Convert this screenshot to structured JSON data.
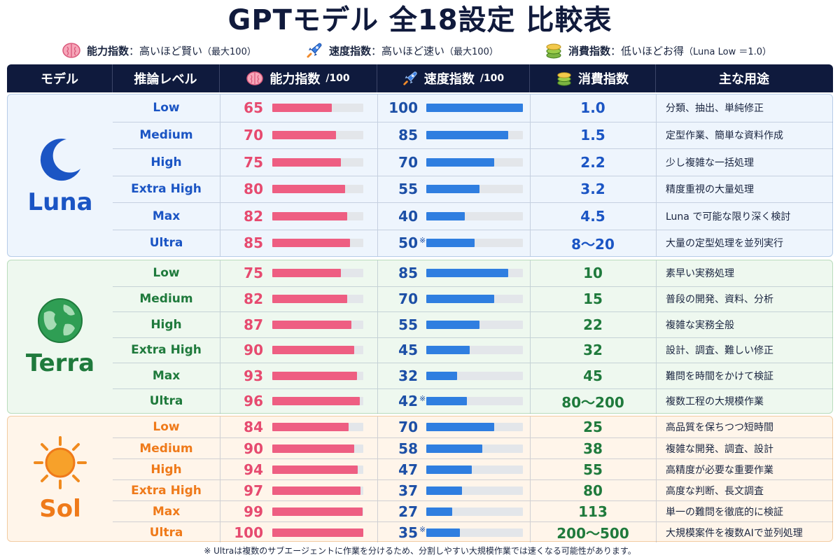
{
  "title": "GPTモデル 全18設定 比較表",
  "legend": [
    {
      "icon": "brain-icon",
      "label": "能力指数",
      "desc": "：高いほど賢い",
      "sub": "（最大100）"
    },
    {
      "icon": "rocket-icon",
      "label": "速度指数",
      "desc": "：高いほど速い",
      "sub": "（最大100）"
    },
    {
      "icon": "coins-icon",
      "label": "消費指数",
      "desc": "：低いほどお得",
      "sub": "（Luna Low ＝1.0）"
    }
  ],
  "columns": {
    "model": "モデル",
    "level": "推論レベル",
    "ability": "能力指数",
    "ability_unit": "/100",
    "speed": "速度指数",
    "speed_unit": "/100",
    "cost": "消費指数",
    "use": "主な用途"
  },
  "colors": {
    "header_bg": "#0f1a3d",
    "ability_bar": "#ee5e82",
    "speed_bar": "#2f7ee0",
    "luna": "#1b55c4",
    "terra": "#1f7a3c",
    "sol": "#ef7a1a"
  },
  "groups": [
    {
      "model": "Luna",
      "icon": "crescent-moon-icon",
      "rows": [
        {
          "level": "Low",
          "ability": 65,
          "speed": "100",
          "speed_value": 100,
          "cost": "1.0",
          "use": "分類、抽出、単純修正"
        },
        {
          "level": "Medium",
          "ability": 70,
          "speed": "85",
          "speed_value": 85,
          "cost": "1.5",
          "use": "定型作業、簡単な資料作成"
        },
        {
          "level": "High",
          "ability": 75,
          "speed": "70",
          "speed_value": 70,
          "cost": "2.2",
          "use": "少し複雑な一括処理"
        },
        {
          "level": "Extra High",
          "ability": 80,
          "speed": "55",
          "speed_value": 55,
          "cost": "3.2",
          "use": "精度重視の大量処理"
        },
        {
          "level": "Max",
          "ability": 82,
          "speed": "40",
          "speed_value": 40,
          "cost": "4.5",
          "use": "Luna で可能な限り深く検討"
        },
        {
          "level": "Ultra",
          "ability": 85,
          "speed": "50",
          "speed_mark": "※",
          "speed_value": 50,
          "cost": "8〜20",
          "use": "大量の定型処理を並列実行"
        }
      ]
    },
    {
      "model": "Terra",
      "icon": "globe-icon",
      "rows": [
        {
          "level": "Low",
          "ability": 75,
          "speed": "85",
          "speed_value": 85,
          "cost": "10",
          "use": "素早い実務処理"
        },
        {
          "level": "Medium",
          "ability": 82,
          "speed": "70",
          "speed_value": 70,
          "cost": "15",
          "use": "普段の開発、資料、分析"
        },
        {
          "level": "High",
          "ability": 87,
          "speed": "55",
          "speed_value": 55,
          "cost": "22",
          "use": "複雑な実務全般"
        },
        {
          "level": "Extra High",
          "ability": 90,
          "speed": "45",
          "speed_value": 45,
          "cost": "32",
          "use": "設計、調査、難しい修正"
        },
        {
          "level": "Max",
          "ability": 93,
          "speed": "32",
          "speed_value": 32,
          "cost": "45",
          "use": "難問を時間をかけて検証"
        },
        {
          "level": "Ultra",
          "ability": 96,
          "speed": "42",
          "speed_mark": "※",
          "speed_value": 42,
          "cost": "80〜200",
          "use": "複数工程の大規模作業"
        }
      ]
    },
    {
      "model": "Sol",
      "icon": "sun-icon",
      "rows": [
        {
          "level": "Low",
          "ability": 84,
          "speed": "70",
          "speed_value": 70,
          "cost": "25",
          "use": "高品質を保ちつつ短時間"
        },
        {
          "level": "Medium",
          "ability": 90,
          "speed": "58",
          "speed_value": 58,
          "cost": "38",
          "use": "複雑な開発、調査、設計"
        },
        {
          "level": "High",
          "ability": 94,
          "speed": "47",
          "speed_value": 47,
          "cost": "55",
          "use": "高精度が必要な重要作業"
        },
        {
          "level": "Extra High",
          "ability": 97,
          "speed": "37",
          "speed_value": 37,
          "cost": "80",
          "use": "高度な判断、長文調査"
        },
        {
          "level": "Max",
          "ability": 99,
          "speed": "27",
          "speed_value": 27,
          "cost": "113",
          "use": "単一の難問を徹底的に検証"
        },
        {
          "level": "Ultra",
          "ability": 100,
          "speed": "35",
          "speed_mark": "※",
          "speed_value": 35,
          "cost": "200〜500",
          "use": "大規模案件を複数AIで並列処理"
        }
      ]
    }
  ],
  "footnote": "※ Ultraは複数のサブエージェントに作業を分けるため、分割しやすい大規模作業では速くなる可能性があります。"
}
